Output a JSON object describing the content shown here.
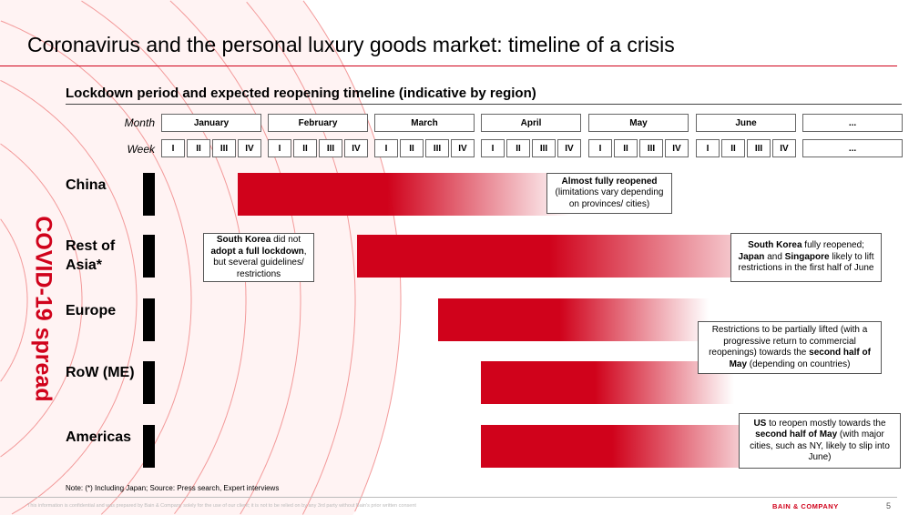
{
  "title": "Coronavirus and the personal luxury goods market: timeline of a crisis",
  "subtitle": "Lockdown period and expected reopening timeline (indicative by region)",
  "month_label": "Month",
  "week_label": "Week",
  "months": [
    "January",
    "February",
    "March",
    "April",
    "May",
    "June",
    "..."
  ],
  "weeks": [
    "I",
    "II",
    "III",
    "IV"
  ],
  "weeks_more": "...",
  "side_label": "COVID-19 spread",
  "regions": [
    {
      "name": "China",
      "lockdown_start_week": 3,
      "fade_end_week": 15.5
    },
    {
      "name": "Rest of Asia*",
      "lockdown_start_week": 7.5,
      "fade_end_week": 23.5
    },
    {
      "name": "Europe",
      "lockdown_start_week": 10.5,
      "fade_end_week": 20.5
    },
    {
      "name": "RoW (ME)",
      "lockdown_start_week": 12,
      "fade_end_week": 21.5
    },
    {
      "name": "Americas",
      "lockdown_start_week": 12,
      "fade_end_week": 23
    }
  ],
  "callouts": [
    [
      {
        "t": "Almost fully reopened",
        "b": true
      },
      {
        "t": " (limitations vary depending on provinces/ cities)",
        "b": false
      }
    ],
    [
      {
        "t": "South Korea",
        "b": true
      },
      {
        "t": " did not ",
        "b": false
      },
      {
        "t": "adopt a full lockdown",
        "b": true
      },
      {
        "t": ", but several guidelines/ restrictions",
        "b": false
      }
    ],
    [
      {
        "t": "South Korea",
        "b": true
      },
      {
        "t": " fully reopened; ",
        "b": false
      },
      {
        "t": "Japan",
        "b": true
      },
      {
        "t": " and ",
        "b": false
      },
      {
        "t": "Singapore",
        "b": true
      },
      {
        "t": " likely to lift restrictions in the first half of June",
        "b": false
      }
    ],
    [
      {
        "t": "Restrictions to be partially lifted (with a progressive return to commercial reopenings) towards the ",
        "b": false
      },
      {
        "t": "second half of May",
        "b": true
      },
      {
        "t": " (depending on countries)",
        "b": false
      }
    ],
    [
      {
        "t": "US",
        "b": true
      },
      {
        "t": " to reopen mostly towards the ",
        "b": false
      },
      {
        "t": "second half of May",
        "b": true
      },
      {
        "t": " (with major cities, such as NY, likely to slip into June)",
        "b": false
      }
    ]
  ],
  "note": "Note: (*) Including Japan; Source: Press search, Expert interviews",
  "confidential": "This information is confidential and was prepared by Bain & Company solely for the use of our client; it is not to be relied on by any 3rd party without Bain's prior written consent",
  "brand": "BAIN & COMPANY",
  "page_number": "5",
  "colors": {
    "accent": "#d0021b"
  }
}
